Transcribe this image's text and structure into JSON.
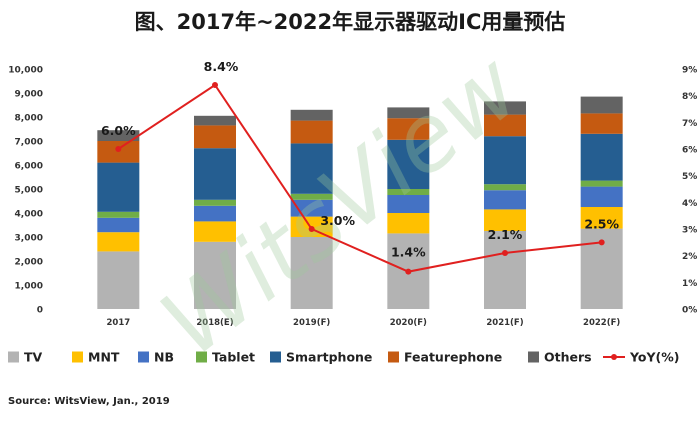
{
  "chart_data": {
    "type": "bar",
    "title": "图、2017年~2022年显示器驱动IC用量预估",
    "categories": [
      "2017",
      "2018(E)",
      "2019(F)",
      "2020(F)",
      "2021(F)",
      "2022(F)"
    ],
    "left_axis": {
      "min": 0,
      "max": 10000,
      "step": 1000,
      "tick_labels": [
        "0",
        "1,000",
        "2,000",
        "3,000",
        "4,000",
        "5,000",
        "6,000",
        "7,000",
        "8,000",
        "9,000",
        "10,000"
      ]
    },
    "right_axis": {
      "min": 0,
      "max": 9,
      "step": 1,
      "tick_labels": [
        "0%",
        "1%",
        "2%",
        "3%",
        "4%",
        "5%",
        "6%",
        "7%",
        "8%",
        "9%"
      ]
    },
    "series": [
      {
        "name": "TV",
        "color": "#b3b3b3",
        "values": [
          2400,
          2800,
          3000,
          3150,
          3250,
          3350
        ]
      },
      {
        "name": "MNT",
        "color": "#ffc000",
        "values": [
          800,
          850,
          850,
          850,
          900,
          900
        ]
      },
      {
        "name": "NB",
        "color": "#4472c4",
        "values": [
          600,
          650,
          700,
          750,
          800,
          850
        ]
      },
      {
        "name": "Tablet",
        "color": "#70ad47",
        "values": [
          250,
          250,
          250,
          250,
          250,
          250
        ]
      },
      {
        "name": "Smartphone",
        "color": "#255e91",
        "values": [
          2050,
          2150,
          2100,
          2050,
          2000,
          1950
        ]
      },
      {
        "name": "Featurephone",
        "color": "#c55a11",
        "values": [
          900,
          950,
          950,
          900,
          900,
          850
        ]
      },
      {
        "name": "Others",
        "color": "#636363",
        "values": [
          450,
          400,
          450,
          450,
          550,
          700
        ]
      }
    ],
    "line_series": {
      "name": "YoY(%)",
      "color": "#e0201f",
      "values": [
        6.0,
        8.4,
        3.0,
        1.4,
        2.1,
        2.5
      ],
      "labels": [
        "6.0%",
        "8.4%",
        "3.0%",
        "1.4%",
        "2.1%",
        "2.5%"
      ]
    },
    "legend_position": "bottom",
    "grid": false,
    "watermark": "WitsView",
    "source": "Source: WitsView, Jan., 2019"
  }
}
